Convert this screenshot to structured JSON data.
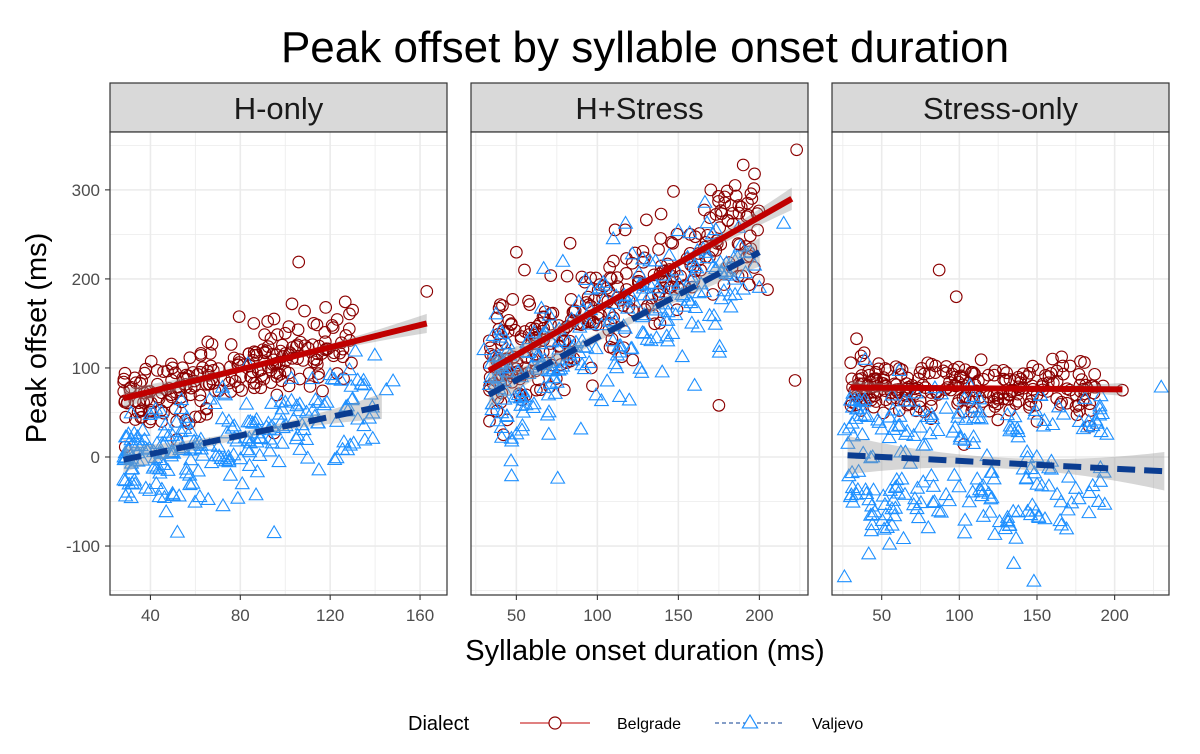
{
  "chart_data": {
    "type": "scatter",
    "title": "Peak offset by syllable onset duration",
    "xlabel": "Syllable onset duration (ms)",
    "ylabel": "Peak offset (ms)",
    "ylim": [
      -155,
      365
    ],
    "y_ticks": [
      -100,
      0,
      100,
      200,
      300
    ],
    "grid": true,
    "legend": {
      "title": "Dialect",
      "position": "bottom",
      "entries": [
        "Belgrade",
        "Valjevo"
      ]
    },
    "series_style": {
      "Belgrade": {
        "color": "#C00000",
        "point_color": "#8B0000",
        "marker": "circle",
        "line": "solid"
      },
      "Valjevo": {
        "color": "#0B3D91",
        "point_color": "#1E90FF",
        "marker": "triangle",
        "line": "dashed"
      }
    },
    "panels": [
      {
        "label": "H-only",
        "xlim": [
          22,
          172
        ],
        "x_ticks": [
          40,
          80,
          120,
          160
        ],
        "series": [
          {
            "name": "Belgrade",
            "fit": {
              "x": [
                28,
                163
              ],
              "y": [
                66,
                150
              ],
              "se": 6
            },
            "cloud": {
              "n": 230,
              "x_range": [
                28,
                130
              ],
              "sd": 20
            },
            "points": [
              [
                106,
                219
              ],
              [
                163,
                186
              ],
              [
                103,
                172
              ],
              [
                118,
                168
              ],
              [
                130,
                165
              ],
              [
                86,
                150
              ],
              [
                95,
                155
              ],
              [
                45,
                40
              ],
              [
                60,
                45
              ]
            ]
          },
          {
            "name": "Valjevo",
            "fit": {
              "x": [
                28,
                143
              ],
              "y": [
                -3,
                57
              ],
              "se": 8
            },
            "cloud": {
              "n": 230,
              "x_range": [
                28,
                140
              ],
              "sd": 28
            },
            "points": [
              [
                52,
                -85
              ],
              [
                47,
                -62
              ],
              [
                30,
                -40
              ],
              [
                62,
                -45
              ],
              [
                120,
                92
              ],
              [
                148,
                85
              ],
              [
                145,
                75
              ],
              [
                87,
                -43
              ],
              [
                115,
                -15
              ],
              [
                130,
                65
              ]
            ]
          }
        ]
      },
      {
        "label": "H+Stress",
        "xlim": [
          22,
          230
        ],
        "x_ticks": [
          50,
          100,
          150,
          200
        ],
        "series": [
          {
            "name": "Belgrade",
            "fit": {
              "x": [
                33,
                220
              ],
              "y": [
                97,
                290
              ],
              "se": 7
            },
            "cloud": {
              "n": 300,
              "x_range": [
                33,
                200
              ],
              "sd": 33
            },
            "points": [
              [
                223,
                345
              ],
              [
                190,
                328
              ],
              [
                197,
                318
              ],
              [
                222,
                86
              ],
              [
                175,
                58
              ],
              [
                205,
                188
              ],
              [
                170,
                300
              ],
              [
                185,
                305
              ],
              [
                42,
                25
              ],
              [
                50,
                230
              ],
              [
                55,
                210
              ]
            ]
          },
          {
            "name": "Valjevo",
            "fit": {
              "x": [
                33,
                200
              ],
              "y": [
                70,
                230
              ],
              "se": 9
            },
            "cloud": {
              "n": 250,
              "x_range": [
                33,
                195
              ],
              "sd": 35
            },
            "points": [
              [
                30,
                120
              ],
              [
                215,
                262
              ],
              [
                185,
                182
              ],
              [
                197,
                215
              ],
              [
                140,
                95
              ],
              [
                200,
                190
              ],
              [
                70,
                25
              ],
              [
                160,
                80
              ]
            ]
          }
        ]
      },
      {
        "label": "Stress-only",
        "xlim": [
          18,
          235
        ],
        "x_ticks": [
          50,
          100,
          150,
          200
        ],
        "series": [
          {
            "name": "Belgrade",
            "fit": {
              "x": [
                30,
                205
              ],
              "y": [
                78,
                76
              ],
              "se": 4
            },
            "cloud": {
              "n": 250,
              "x_range": [
                30,
                195
              ],
              "sd": 16
            },
            "points": [
              [
                87,
                210
              ],
              [
                98,
                180
              ],
              [
                160,
                110
              ],
              [
                205,
                75
              ],
              [
                103,
                14
              ],
              [
                150,
                40
              ]
            ]
          },
          {
            "name": "Valjevo",
            "fit": {
              "x": [
                28,
                232
              ],
              "y": [
                2,
                -16
              ],
              "se": 12
            },
            "cloud": {
              "n": 230,
              "x_range": [
                28,
                195
              ],
              "sd": 30
            },
            "points": [
              [
                26,
                -135
              ],
              [
                148,
                -140
              ],
              [
                135,
                -120
              ],
              [
                230,
                78
              ],
              [
                195,
                25
              ],
              [
                26,
                30
              ],
              [
                170,
                -60
              ],
              [
                80,
                -80
              ]
            ]
          }
        ]
      }
    ]
  }
}
